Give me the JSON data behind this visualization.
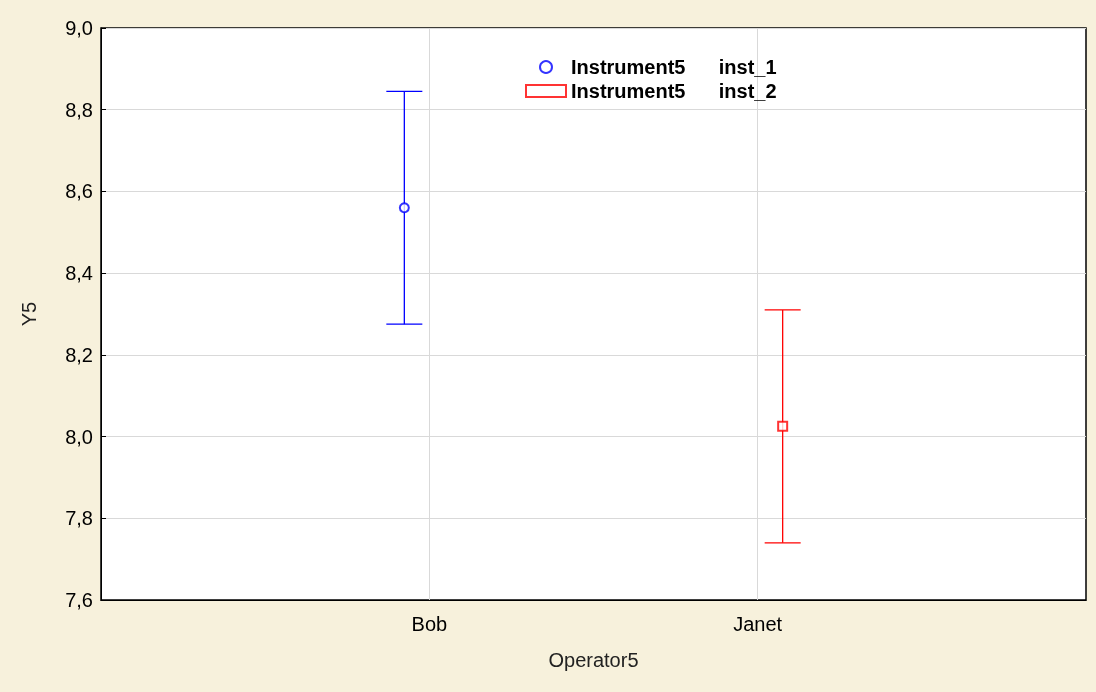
{
  "chart_data": {
    "type": "scatter",
    "xlabel": "Operator5",
    "ylabel": "Y5",
    "categories": [
      null,
      "Bob",
      "Janet",
      null
    ],
    "series": [
      {
        "name": "Instrument5      inst_1",
        "color": "#0000ff",
        "marker": "circle",
        "values": [
          null,
          8.56,
          null,
          null
        ],
        "errors": [
          null,
          [
            8.275,
            8.845
          ],
          null,
          null
        ]
      },
      {
        "name": "Instrument5      inst_2",
        "color": "#ff0000",
        "marker": "square",
        "values": [
          null,
          null,
          8.025,
          null
        ],
        "errors": [
          null,
          null,
          [
            7.74,
            8.31
          ],
          null
        ]
      }
    ],
    "ylim": [
      7.6,
      9.0
    ],
    "yticks": [
      {
        "value": 7.6,
        "label": "7,6"
      },
      {
        "value": 7.8,
        "label": "7,8"
      },
      {
        "value": 8.0,
        "label": "8,0"
      },
      {
        "value": 8.2,
        "label": "8,2"
      },
      {
        "value": 8.4,
        "label": "8,4"
      },
      {
        "value": 8.6,
        "label": "8,6"
      },
      {
        "value": 8.8,
        "label": "8,8"
      },
      {
        "value": 9.0,
        "label": "9,0"
      }
    ],
    "grid": true,
    "legend": "top"
  }
}
